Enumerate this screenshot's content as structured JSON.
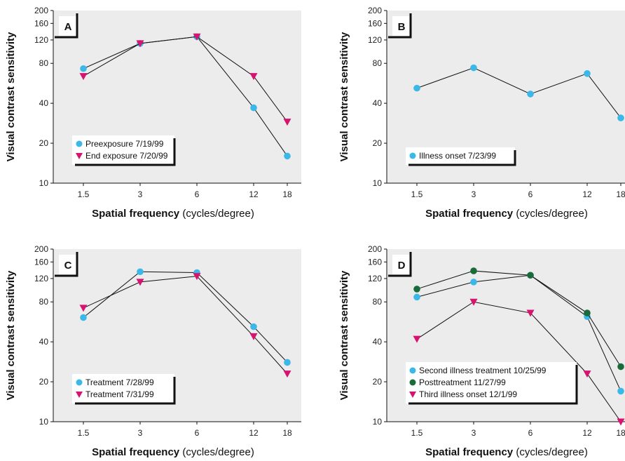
{
  "axis_labels": {
    "y": "Visual contrast sensitivity",
    "x_bold": "Spatial frequency",
    "x_rest": " (cycles/degree)"
  },
  "marker_colors": {
    "circle": "#3cb8e8",
    "triangle": "#d6136e",
    "dark_circle": "#1a6b3a"
  },
  "chart_data": [
    {
      "type": "line",
      "panel": "A",
      "x": [
        1.5,
        3,
        6,
        12,
        18
      ],
      "x_ticks": [
        "1.5",
        "3",
        "6",
        "12",
        "18"
      ],
      "y_ticks": [
        10,
        20,
        40,
        80,
        120,
        160,
        200
      ],
      "y_scale": "log",
      "ylim": [
        10,
        200
      ],
      "grid": false,
      "legend_position": "bottom-left",
      "series": [
        {
          "name": "Preexposure 7/19/99",
          "marker": "circle",
          "values": [
            73,
            113,
            127,
            37,
            16
          ]
        },
        {
          "name": "End exposure 7/20/99",
          "marker": "triangle",
          "values": [
            64,
            113,
            127,
            64,
            29
          ]
        }
      ]
    },
    {
      "type": "line",
      "panel": "B",
      "x": [
        1.5,
        3,
        6,
        12,
        18
      ],
      "x_ticks": [
        "1.5",
        "3",
        "6",
        "12",
        "18"
      ],
      "y_ticks": [
        10,
        20,
        40,
        80,
        120,
        160,
        200
      ],
      "y_scale": "log",
      "ylim": [
        10,
        200
      ],
      "grid": false,
      "legend_position": "bottom-left",
      "series": [
        {
          "name": "Illness onset 7/23/99",
          "marker": "circle",
          "values": [
            52,
            74,
            47,
            67,
            31
          ]
        }
      ]
    },
    {
      "type": "line",
      "panel": "C",
      "x": [
        1.5,
        3,
        6,
        12,
        18
      ],
      "x_ticks": [
        "1.5",
        "3",
        "6",
        "12",
        "18"
      ],
      "y_ticks": [
        10,
        20,
        40,
        80,
        120,
        160,
        200
      ],
      "y_scale": "log",
      "ylim": [
        10,
        200
      ],
      "grid": false,
      "legend_position": "bottom-left",
      "series": [
        {
          "name": "Treatment 7/28/99",
          "marker": "circle",
          "values": [
            61,
            135,
            133,
            52,
            28
          ]
        },
        {
          "name": "Treatment 7/31/99",
          "marker": "triangle",
          "values": [
            72,
            113,
            125,
            44,
            23
          ]
        }
      ]
    },
    {
      "type": "line",
      "panel": "D",
      "x": [
        1.5,
        3,
        6,
        12,
        18
      ],
      "x_ticks": [
        "1.5",
        "3",
        "6",
        "12",
        "18"
      ],
      "y_ticks": [
        10,
        20,
        40,
        80,
        120,
        160,
        200
      ],
      "y_scale": "log",
      "ylim": [
        10,
        200
      ],
      "grid": false,
      "legend_position": "bottom-left",
      "series": [
        {
          "name": "Second illness treatment 10/25/99",
          "marker": "circle",
          "values": [
            87,
            113,
            127,
            62,
            17
          ]
        },
        {
          "name": "Posttreatment 11/27/99",
          "marker": "dark_circle",
          "values": [
            100,
            137,
            127,
            66,
            26
          ]
        },
        {
          "name": "Third illness onset 12/1/99",
          "marker": "triangle",
          "values": [
            42,
            80,
            66,
            23,
            10
          ]
        }
      ]
    }
  ]
}
